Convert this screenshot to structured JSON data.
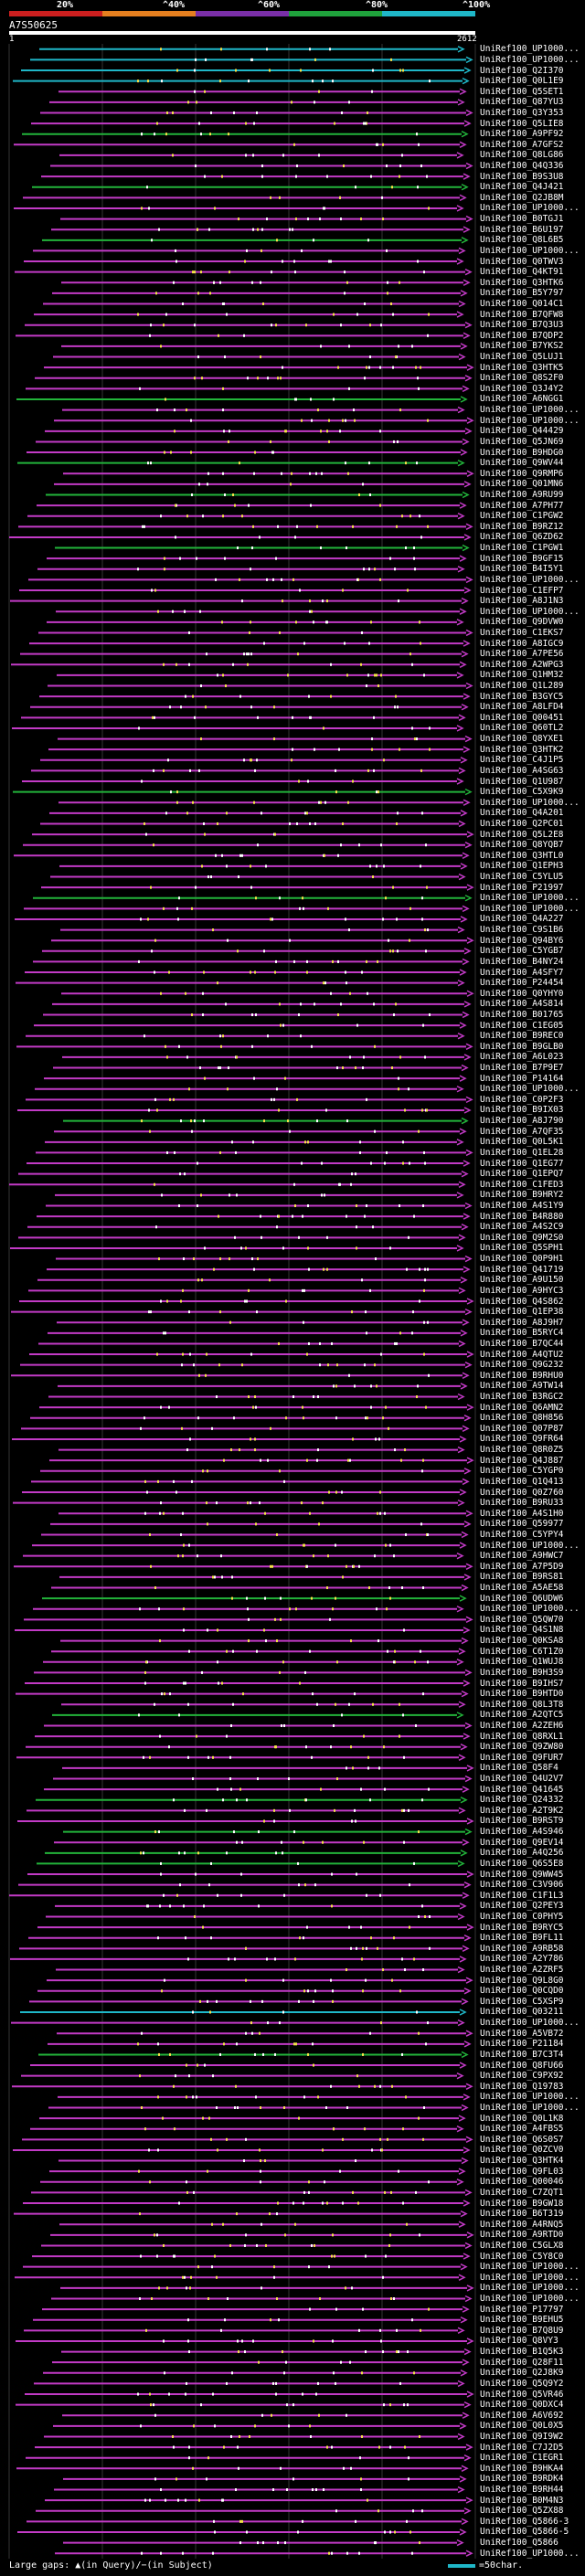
{
  "header": {
    "percent_labels": [
      "20%",
      "^40%",
      "^60%",
      "^80%",
      "^100%"
    ],
    "query_title": "A7S50625",
    "query_start": "1",
    "query_end": "2612"
  },
  "colors": {
    "background": "#000000",
    "segments": [
      "#cc1f1f",
      "#e57f1f",
      "#7a2fa8",
      "#1fa23c",
      "#1fb7c8"
    ],
    "identity_palette": {
      "cyan": "#1fb7c8",
      "green": "#22b33a",
      "magenta": "#c23ac6",
      "orange": "#e5951f",
      "white": "#ffffff"
    },
    "gaps": "#f4e04a"
  },
  "hits": [
    {
      "label": "UniRef100_UP1000...",
      "color": "cyan"
    },
    {
      "label": "UniRef100_UP1000...",
      "color": "cyan"
    },
    {
      "label": "UniRef100_Q2I370",
      "color": "cyan"
    },
    {
      "label": "UniRef100_Q0L1E9",
      "color": "cyan"
    },
    {
      "label": "UniRef100_Q5SET1",
      "color": "magenta"
    },
    {
      "label": "UniRef100_Q87YU3",
      "color": "magenta"
    },
    {
      "label": "UniRef100_Q3Y353",
      "color": "magenta"
    },
    {
      "label": "UniRef100_Q5LIE8",
      "color": "magenta"
    },
    {
      "label": "UniRef100_A9PF92",
      "color": "green"
    },
    {
      "label": "UniRef100_A7GFS2",
      "color": "magenta"
    },
    {
      "label": "UniRef100_Q8LG86",
      "color": "magenta"
    },
    {
      "label": "UniRef100_Q4Q336",
      "color": "magenta"
    },
    {
      "label": "UniRef100_B9S3U8",
      "color": "magenta"
    },
    {
      "label": "UniRef100_Q4J421",
      "color": "green"
    },
    {
      "label": "UniRef100_Q2JB8M",
      "color": "magenta"
    },
    {
      "label": "UniRef100_UP1000...",
      "color": "magenta"
    },
    {
      "label": "UniRef100_B0TGJ1",
      "color": "magenta"
    },
    {
      "label": "UniRef100_B6U197",
      "color": "magenta"
    },
    {
      "label": "UniRef100_Q8L6B5",
      "color": "green"
    },
    {
      "label": "UniRef100_UP1000...",
      "color": "magenta"
    },
    {
      "label": "UniRef100_Q0TWV3",
      "color": "magenta"
    },
    {
      "label": "UniRef100_Q4KT91",
      "color": "magenta"
    },
    {
      "label": "UniRef100_Q3HTK6",
      "color": "magenta"
    },
    {
      "label": "UniRef100_B5Y797",
      "color": "magenta"
    },
    {
      "label": "UniRef100_Q014C1",
      "color": "magenta"
    },
    {
      "label": "UniRef100_B7QFW8",
      "color": "magenta"
    },
    {
      "label": "UniRef100_B7Q3U3",
      "color": "magenta"
    },
    {
      "label": "UniRef100_B7QDP2",
      "color": "magenta"
    },
    {
      "label": "UniRef100_B7YKS2",
      "color": "magenta"
    },
    {
      "label": "UniRef100_Q5LUJ1",
      "color": "magenta"
    },
    {
      "label": "UniRef100_Q3HTK5",
      "color": "magenta"
    },
    {
      "label": "UniRef100_Q8S2F0",
      "color": "magenta"
    },
    {
      "label": "UniRef100_Q3J4Y2",
      "color": "magenta"
    },
    {
      "label": "UniRef100_A6NGG1",
      "color": "green"
    },
    {
      "label": "UniRef100_UP1000...",
      "color": "magenta"
    },
    {
      "label": "UniRef100_UP1000...",
      "color": "magenta"
    },
    {
      "label": "UniRef100_Q44429",
      "color": "magenta"
    },
    {
      "label": "UniRef100_Q5JN69",
      "color": "magenta"
    },
    {
      "label": "UniRef100_B9HDG0",
      "color": "magenta"
    },
    {
      "label": "UniRef100_Q9WV44",
      "color": "green"
    },
    {
      "label": "UniRef100_Q9RMP6",
      "color": "magenta"
    },
    {
      "label": "UniRef100_Q01MN6",
      "color": "magenta"
    },
    {
      "label": "UniRef100_A9RU99",
      "color": "green"
    },
    {
      "label": "UniRef100_A7PH77",
      "color": "magenta"
    },
    {
      "label": "UniRef100_C1PGW2",
      "color": "magenta"
    },
    {
      "label": "UniRef100_B9RZ12",
      "color": "magenta"
    },
    {
      "label": "UniRef100_Q6ZD62",
      "color": "magenta"
    },
    {
      "label": "UniRef100_C1PGW1",
      "color": "green"
    },
    {
      "label": "UniRef100_B9GF15",
      "color": "magenta"
    },
    {
      "label": "UniRef100_B4I5Y1",
      "color": "magenta"
    },
    {
      "label": "UniRef100_UP1000...",
      "color": "magenta"
    },
    {
      "label": "UniRef100_C1EFP7",
      "color": "magenta"
    },
    {
      "label": "UniRef100_A8J1N3",
      "color": "magenta"
    },
    {
      "label": "UniRef100_UP1000...",
      "color": "magenta"
    },
    {
      "label": "UniRef100_Q9DVW0",
      "color": "magenta"
    },
    {
      "label": "UniRef100_C1EKS7",
      "color": "magenta"
    },
    {
      "label": "UniRef100_A8IGC9",
      "color": "magenta"
    },
    {
      "label": "UniRef100_A7PE56",
      "color": "magenta"
    },
    {
      "label": "UniRef100_A2WPG3",
      "color": "magenta"
    },
    {
      "label": "UniRef100_Q1HM32",
      "color": "magenta"
    },
    {
      "label": "UniRef100_Q1L289",
      "color": "magenta"
    },
    {
      "label": "UniRef100_B3GYC5",
      "color": "magenta"
    },
    {
      "label": "UniRef100_A8LFD4",
      "color": "magenta"
    },
    {
      "label": "UniRef100_Q00451",
      "color": "magenta"
    },
    {
      "label": "UniRef100_Q60TL2",
      "color": "magenta"
    },
    {
      "label": "UniRef100_Q8YXE1",
      "color": "magenta"
    },
    {
      "label": "UniRef100_Q3HTK2",
      "color": "magenta"
    },
    {
      "label": "UniRef100_C4J1P5",
      "color": "magenta"
    },
    {
      "label": "UniRef100_A4SG63",
      "color": "magenta"
    },
    {
      "label": "UniRef100_Q1U987",
      "color": "magenta"
    },
    {
      "label": "UniRef100_C5X9K9",
      "color": "green"
    },
    {
      "label": "UniRef100_UP1000...",
      "color": "magenta"
    },
    {
      "label": "UniRef100_Q4A201",
      "color": "magenta"
    },
    {
      "label": "UniRef100_Q2PC01",
      "color": "magenta"
    },
    {
      "label": "UniRef100_Q5L2E8",
      "color": "magenta"
    },
    {
      "label": "UniRef100_Q8YQB7",
      "color": "magenta"
    },
    {
      "label": "UniRef100_Q3HTL0",
      "color": "magenta"
    },
    {
      "label": "UniRef100_Q1EPH3",
      "color": "magenta"
    },
    {
      "label": "UniRef100_C5YLU5",
      "color": "magenta"
    },
    {
      "label": "UniRef100_P21997",
      "color": "magenta"
    },
    {
      "label": "UniRef100_UP1000...",
      "color": "green"
    },
    {
      "label": "UniRef100_UP1000...",
      "color": "magenta"
    },
    {
      "label": "UniRef100_Q4A227",
      "color": "magenta"
    },
    {
      "label": "UniRef100_C9S1B6",
      "color": "magenta"
    },
    {
      "label": "UniRef100_Q94BY6",
      "color": "magenta"
    },
    {
      "label": "UniRef100_C5YGB7",
      "color": "magenta"
    },
    {
      "label": "UniRef100_B4NY24",
      "color": "magenta"
    },
    {
      "label": "UniRef100_A4SFY7",
      "color": "magenta"
    },
    {
      "label": "UniRef100_P24454",
      "color": "magenta"
    },
    {
      "label": "UniRef100_Q0YHY0",
      "color": "magenta"
    },
    {
      "label": "UniRef100_A4S814",
      "color": "magenta"
    },
    {
      "label": "UniRef100_B01765",
      "color": "magenta"
    },
    {
      "label": "UniRef100_C1EG05",
      "color": "magenta"
    },
    {
      "label": "UniRef100_B9REC0",
      "color": "magenta"
    },
    {
      "label": "UniRef100_B9GLB0",
      "color": "magenta"
    },
    {
      "label": "UniRef100_A6L023",
      "color": "magenta"
    },
    {
      "label": "UniRef100_B7P9E7",
      "color": "magenta"
    },
    {
      "label": "UniRef100_P14164",
      "color": "magenta"
    },
    {
      "label": "UniRef100_UP1000...",
      "color": "magenta"
    },
    {
      "label": "UniRef100_C0P2F3",
      "color": "magenta"
    },
    {
      "label": "UniRef100_B9IX03",
      "color": "magenta"
    },
    {
      "label": "UniRef100_A8J790",
      "color": "green"
    },
    {
      "label": "UniRef100_A7QF35",
      "color": "magenta"
    },
    {
      "label": "UniRef100_Q0L5K1",
      "color": "magenta"
    },
    {
      "label": "UniRef100_Q1EL28",
      "color": "magenta"
    },
    {
      "label": "UniRef100_Q1EG77",
      "color": "magenta"
    },
    {
      "label": "UniRef100_Q1EPQ7",
      "color": "magenta"
    },
    {
      "label": "UniRef100_C1FED3",
      "color": "magenta"
    },
    {
      "label": "UniRef100_B9HRY2",
      "color": "magenta"
    },
    {
      "label": "UniRef100_A4S1Y9",
      "color": "magenta"
    },
    {
      "label": "UniRef100_B4R880",
      "color": "magenta"
    },
    {
      "label": "UniRef100_A4S2C9",
      "color": "magenta"
    },
    {
      "label": "UniRef100_Q9M2S0",
      "color": "magenta"
    },
    {
      "label": "UniRef100_Q5SPH1",
      "color": "magenta"
    },
    {
      "label": "UniRef100_Q0P9H1",
      "color": "magenta"
    },
    {
      "label": "UniRef100_Q41719",
      "color": "magenta"
    },
    {
      "label": "UniRef100_A9U150",
      "color": "magenta"
    },
    {
      "label": "UniRef100_A9HYC3",
      "color": "magenta"
    },
    {
      "label": "UniRef100_Q4S862",
      "color": "magenta"
    },
    {
      "label": "UniRef100_Q1EP38",
      "color": "magenta"
    },
    {
      "label": "UniRef100_A8J9H7",
      "color": "magenta"
    },
    {
      "label": "UniRef100_B5RYC4",
      "color": "magenta"
    },
    {
      "label": "UniRef100_B7QC44",
      "color": "magenta"
    },
    {
      "label": "UniRef100_A4QTU2",
      "color": "magenta"
    },
    {
      "label": "UniRef100_Q9G232",
      "color": "magenta"
    },
    {
      "label": "UniRef100_B9RHU0",
      "color": "magenta"
    },
    {
      "label": "UniRef100_A9TW14",
      "color": "magenta"
    },
    {
      "label": "UniRef100_B3RGC2",
      "color": "magenta"
    },
    {
      "label": "UniRef100_Q6AMN2",
      "color": "magenta"
    },
    {
      "label": "UniRef100_Q8H856",
      "color": "magenta"
    },
    {
      "label": "UniRef100_Q07P87",
      "color": "magenta"
    },
    {
      "label": "UniRef100_Q9FR64",
      "color": "magenta"
    },
    {
      "label": "UniRef100_Q8R0Z5",
      "color": "magenta"
    },
    {
      "label": "UniRef100_Q4J887",
      "color": "magenta"
    },
    {
      "label": "UniRef100_C5YGP0",
      "color": "magenta"
    },
    {
      "label": "UniRef100_Q1Q413",
      "color": "magenta"
    },
    {
      "label": "UniRef100_Q0Z760",
      "color": "magenta"
    },
    {
      "label": "UniRef100_B9RU33",
      "color": "magenta"
    },
    {
      "label": "UniRef100_A4S1H0",
      "color": "magenta"
    },
    {
      "label": "UniRef100_Q59977",
      "color": "magenta"
    },
    {
      "label": "UniRef100_C5YPY4",
      "color": "magenta"
    },
    {
      "label": "UniRef100_UP1000...",
      "color": "magenta"
    },
    {
      "label": "UniRef100_A9HWC7",
      "color": "magenta"
    },
    {
      "label": "UniRef100_A7P5D9",
      "color": "magenta"
    },
    {
      "label": "UniRef100_B9RS81",
      "color": "magenta"
    },
    {
      "label": "UniRef100_A5AE58",
      "color": "magenta"
    },
    {
      "label": "UniRef100_Q6UDW6",
      "color": "green"
    },
    {
      "label": "UniRef100_UP1000...",
      "color": "magenta"
    },
    {
      "label": "UniRef100_Q5QW70",
      "color": "magenta"
    },
    {
      "label": "UniRef100_Q4S1N8",
      "color": "magenta"
    },
    {
      "label": "UniRef100_Q0KSA8",
      "color": "magenta"
    },
    {
      "label": "UniRef100_C6T1Z0",
      "color": "magenta"
    },
    {
      "label": "UniRef100_Q1WUJ8",
      "color": "magenta"
    },
    {
      "label": "UniRef100_B9H3S9",
      "color": "magenta"
    },
    {
      "label": "UniRef100_B9IHS7",
      "color": "magenta"
    },
    {
      "label": "UniRef100_B9HTD0",
      "color": "magenta"
    },
    {
      "label": "UniRef100_Q8L3T8",
      "color": "magenta"
    },
    {
      "label": "UniRef100_A2QTC5",
      "color": "green"
    },
    {
      "label": "UniRef100_A2ZEH6",
      "color": "magenta"
    },
    {
      "label": "UniRef100_Q8RXL1",
      "color": "magenta"
    },
    {
      "label": "UniRef100_Q9ZW80",
      "color": "magenta"
    },
    {
      "label": "UniRef100_Q9FUR7",
      "color": "magenta"
    },
    {
      "label": "UniRef100_Q58F4",
      "color": "magenta"
    },
    {
      "label": "UniRef100_Q4U2V7",
      "color": "magenta"
    },
    {
      "label": "UniRef100_Q41645",
      "color": "magenta"
    },
    {
      "label": "UniRef100_Q24332",
      "color": "green"
    },
    {
      "label": "UniRef100_A2T9K2",
      "color": "magenta"
    },
    {
      "label": "UniRef100_B9RST9",
      "color": "magenta"
    },
    {
      "label": "UniRef100_A4S946",
      "color": "green"
    },
    {
      "label": "UniRef100_Q9EV14",
      "color": "magenta"
    },
    {
      "label": "UniRef100_A4Q256",
      "color": "green"
    },
    {
      "label": "UniRef100_Q6S5E8",
      "color": "green"
    },
    {
      "label": "UniRef100_Q9WW45",
      "color": "magenta"
    },
    {
      "label": "UniRef100_C3V906",
      "color": "magenta"
    },
    {
      "label": "UniRef100_C1F1L3",
      "color": "magenta"
    },
    {
      "label": "UniRef100_Q2PEY3",
      "color": "magenta"
    },
    {
      "label": "UniRef100_C0PHY5",
      "color": "magenta"
    },
    {
      "label": "UniRef100_B9RYC5",
      "color": "magenta"
    },
    {
      "label": "UniRef100_B9FL11",
      "color": "magenta"
    },
    {
      "label": "UniRef100_A9RB58",
      "color": "magenta"
    },
    {
      "label": "UniRef100_A2Y786",
      "color": "magenta"
    },
    {
      "label": "UniRef100_A2ZRF5",
      "color": "magenta"
    },
    {
      "label": "UniRef100_Q9L8G0",
      "color": "magenta"
    },
    {
      "label": "UniRef100_Q0CQD0",
      "color": "magenta"
    },
    {
      "label": "UniRef100_C5XSP9",
      "color": "magenta"
    },
    {
      "label": "UniRef100_Q03211",
      "color": "cyan"
    },
    {
      "label": "UniRef100_UP1000...",
      "color": "magenta"
    },
    {
      "label": "UniRef100_A5VB72",
      "color": "magenta"
    },
    {
      "label": "UniRef100_P21184",
      "color": "magenta"
    },
    {
      "label": "UniRef100_B7C3T4",
      "color": "green"
    },
    {
      "label": "UniRef100_Q8FU66",
      "color": "magenta"
    },
    {
      "label": "UniRef100_C9PX92",
      "color": "magenta"
    },
    {
      "label": "UniRef100_Q19783",
      "color": "magenta"
    },
    {
      "label": "UniRef100_UP1000...",
      "color": "magenta"
    },
    {
      "label": "UniRef100_UP1000...",
      "color": "magenta"
    },
    {
      "label": "UniRef100_Q0L1K8",
      "color": "magenta"
    },
    {
      "label": "UniRef100_A4FBS5",
      "color": "magenta"
    },
    {
      "label": "UniRef100_Q6S0S7",
      "color": "magenta"
    },
    {
      "label": "UniRef100_Q0ZCV0",
      "color": "magenta"
    },
    {
      "label": "UniRef100_Q3HTK4",
      "color": "magenta"
    },
    {
      "label": "UniRef100_Q9FL03",
      "color": "magenta"
    },
    {
      "label": "UniRef100_Q00046",
      "color": "magenta"
    },
    {
      "label": "UniRef100_C7ZQT1",
      "color": "magenta"
    },
    {
      "label": "UniRef100_B9GW18",
      "color": "magenta"
    },
    {
      "label": "UniRef100_B6T319",
      "color": "magenta"
    },
    {
      "label": "UniRef100_A4RNQ5",
      "color": "magenta"
    },
    {
      "label": "UniRef100_A9RTD0",
      "color": "magenta"
    },
    {
      "label": "UniRef100_C5GLX8",
      "color": "magenta"
    },
    {
      "label": "UniRef100_C5Y8C0",
      "color": "magenta"
    },
    {
      "label": "UniRef100_UP1000...",
      "color": "magenta"
    },
    {
      "label": "UniRef100_UP1000...",
      "color": "magenta"
    },
    {
      "label": "UniRef100_UP1000...",
      "color": "magenta"
    },
    {
      "label": "UniRef100_UP1000...",
      "color": "magenta"
    },
    {
      "label": "UniRef100_P17797",
      "color": "magenta"
    },
    {
      "label": "UniRef100_B9EHU5",
      "color": "magenta"
    },
    {
      "label": "UniRef100_B7Q8U9",
      "color": "magenta"
    },
    {
      "label": "UniRef100_Q8VY3",
      "color": "magenta"
    },
    {
      "label": "UniRef100_B1Q5K3",
      "color": "magenta"
    },
    {
      "label": "UniRef100_Q28F11",
      "color": "magenta"
    },
    {
      "label": "UniRef100_Q2J8K9",
      "color": "magenta"
    },
    {
      "label": "UniRef100_Q5Q9Y2",
      "color": "magenta"
    },
    {
      "label": "UniRef100_Q5VR46",
      "color": "magenta"
    },
    {
      "label": "UniRef100_Q0DXC4",
      "color": "magenta"
    },
    {
      "label": "UniRef100_A6V692",
      "color": "magenta"
    },
    {
      "label": "UniRef100_Q0L0X5",
      "color": "magenta"
    },
    {
      "label": "UniRef100_Q9I9W2",
      "color": "magenta"
    },
    {
      "label": "UniRef100_C7J2D5",
      "color": "magenta"
    },
    {
      "label": "UniRef100_C1EGR1",
      "color": "magenta"
    },
    {
      "label": "UniRef100_B9HKA4",
      "color": "magenta"
    },
    {
      "label": "UniRef100_B9RDK4",
      "color": "magenta"
    },
    {
      "label": "UniRef100_B9RH44",
      "color": "magenta"
    },
    {
      "label": "UniRef100_B0M4N3",
      "color": "magenta"
    },
    {
      "label": "UniRef100_Q5ZX88",
      "color": "magenta"
    },
    {
      "label": "UniRef100_Q5866-3",
      "color": "magenta"
    },
    {
      "label": "UniRef100_Q5866-5",
      "color": "magenta"
    },
    {
      "label": "UniRef100_Q5866",
      "color": "magenta"
    },
    {
      "label": "UniRef100_UP1000...",
      "color": "magenta"
    }
  ],
  "legend": {
    "text": "Large gaps: ▲(in Query)/−(in Subject)",
    "scale_label": "=50char."
  }
}
